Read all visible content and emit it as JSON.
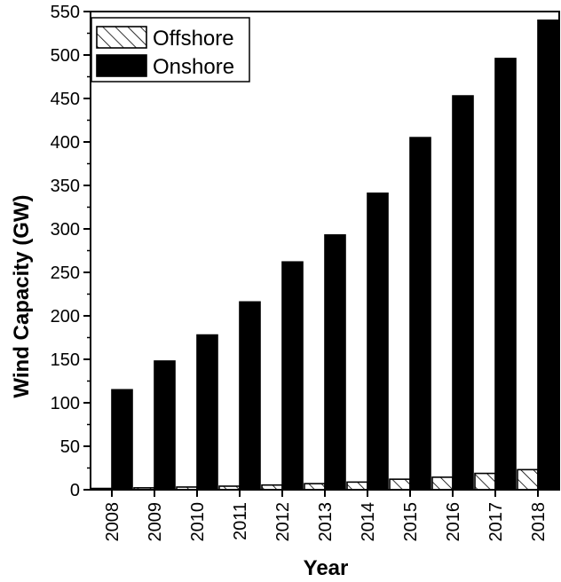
{
  "chart_data": {
    "type": "bar",
    "title": "",
    "xlabel": "Year",
    "ylabel": "Wind Capacity (GW)",
    "categories": [
      "2008",
      "2009",
      "2010",
      "2011",
      "2012",
      "2013",
      "2014",
      "2015",
      "2016",
      "2017",
      "2018"
    ],
    "series": [
      {
        "name": "Offshore",
        "pattern": "diagonal-hatch",
        "color": "#ffffff",
        "values": [
          1.5,
          2.2,
          3.1,
          4.1,
          5.4,
          7.0,
          8.8,
          12.1,
          14.4,
          18.8,
          23.1
        ]
      },
      {
        "name": "Onshore",
        "color": "#000000",
        "values": [
          115,
          148,
          178,
          216,
          262,
          293,
          341,
          405,
          453,
          496,
          540
        ]
      }
    ],
    "ylim": [
      0,
      550
    ],
    "yticks": [
      0,
      50,
      100,
      150,
      200,
      250,
      300,
      350,
      400,
      450,
      500,
      550
    ],
    "grid": false,
    "legend_position": "top-left"
  }
}
